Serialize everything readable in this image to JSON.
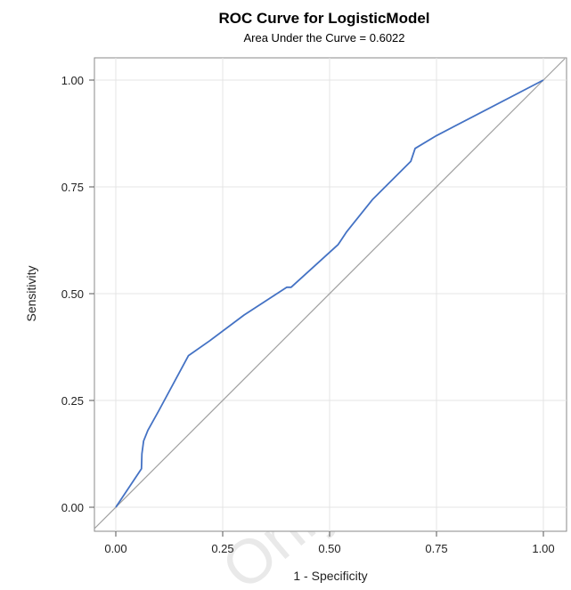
{
  "chart_data": {
    "type": "line",
    "title": "ROC Curve for LogisticModel",
    "subtitle": "Area Under the Curve = 0.6022",
    "xlabel": "1 - Specificity",
    "ylabel": "Sensitivity",
    "xlim": [
      0,
      1
    ],
    "ylim": [
      0,
      1
    ],
    "x_ticks": [
      "0.00",
      "0.25",
      "0.50",
      "0.75",
      "1.00"
    ],
    "y_ticks": [
      "0.00",
      "0.25",
      "0.50",
      "0.75",
      "1.00"
    ],
    "grid": true,
    "legend": "none",
    "series": [
      {
        "color": "#4472c4",
        "x": [
          0.0,
          0.06,
          0.061,
          0.065,
          0.075,
          0.1,
          0.17,
          0.22,
          0.3,
          0.4,
          0.4,
          0.41,
          0.52,
          0.54,
          0.6,
          0.69,
          0.7,
          0.75,
          1.0
        ],
        "y": [
          0.0,
          0.09,
          0.125,
          0.155,
          0.18,
          0.225,
          0.355,
          0.39,
          0.45,
          0.515,
          0.515,
          0.515,
          0.615,
          0.645,
          0.72,
          0.81,
          0.84,
          0.87,
          1.0
        ]
      },
      {
        "color": "#a0a0a0",
        "x": [
          0.0,
          1.0
        ],
        "y": [
          0.0,
          1.0
        ]
      }
    ]
  },
  "watermark": "Only"
}
